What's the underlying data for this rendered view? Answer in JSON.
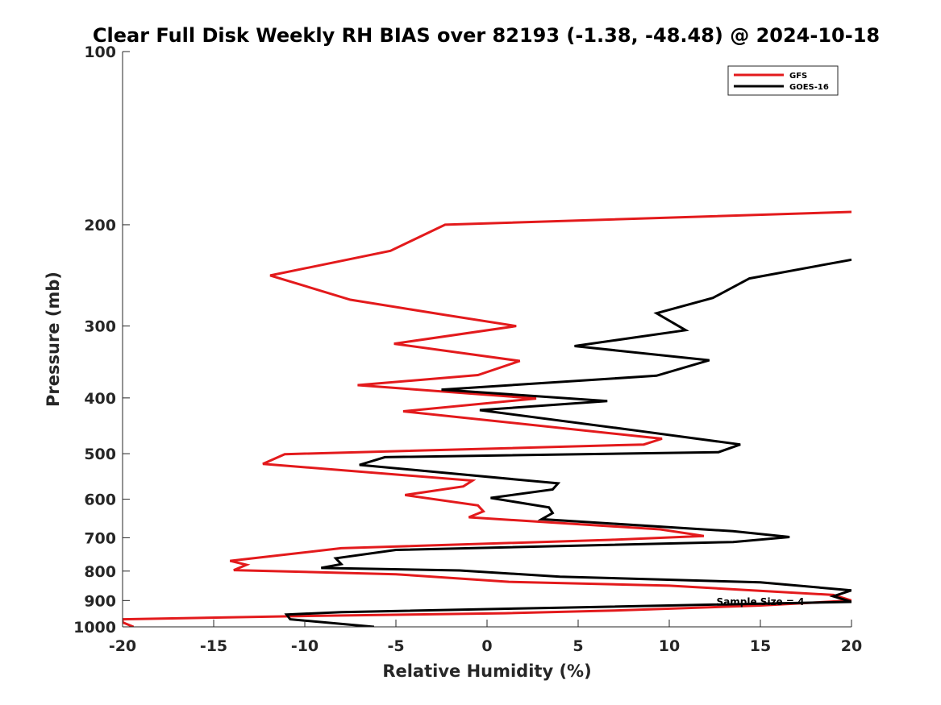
{
  "chart_data": {
    "type": "line",
    "title": "Clear Full Disk Weekly RH BIAS over 82193 (-1.38, -48.48) @ 2024-10-18",
    "xlabel": "Relative Humidity (%)",
    "ylabel": "Pressure (mb)",
    "xlim": [
      -20,
      20
    ],
    "ylim": [
      100,
      1000
    ],
    "y_scale": "log",
    "y_reversed": true,
    "x_ticks": [
      -20,
      -15,
      -10,
      -5,
      0,
      5,
      10,
      15,
      20
    ],
    "x_tick_labels": [
      "-20",
      "-15",
      "-10",
      "-5",
      "0",
      "5",
      "10",
      "15",
      "20"
    ],
    "y_ticks": [
      100,
      200,
      300,
      400,
      500,
      600,
      700,
      800,
      900,
      1000
    ],
    "y_tick_labels": [
      "100",
      "200",
      "300",
      "400",
      "500",
      "600",
      "700",
      "800",
      "900",
      "1000"
    ],
    "grid": false,
    "legend_position": "top-right",
    "annotation": "Sample Size = 4",
    "series": [
      {
        "name": "GFS",
        "color": "#e31a1c",
        "points": [
          [
            20,
            190
          ],
          [
            -2.3,
            200
          ],
          [
            -5.3,
            222
          ],
          [
            -11.9,
            245
          ],
          [
            -7.5,
            270
          ],
          [
            -2.3,
            287
          ],
          [
            1.6,
            300
          ],
          [
            -5.1,
            322
          ],
          [
            1.8,
            345
          ],
          [
            -0.5,
            365
          ],
          [
            -7.1,
            380
          ],
          [
            2.7,
            401
          ],
          [
            -4.6,
            422
          ],
          [
            9.6,
            471
          ],
          [
            8.6,
            482
          ],
          [
            -11.1,
            501
          ],
          [
            -12.3,
            521
          ],
          [
            -0.8,
            557
          ],
          [
            -1.3,
            570
          ],
          [
            -4.5,
            590
          ],
          [
            -0.5,
            615
          ],
          [
            -0.2,
            630
          ],
          [
            -1.0,
            645
          ],
          [
            9.5,
            677
          ],
          [
            11.9,
            695
          ],
          [
            6.8,
            706
          ],
          [
            -8.0,
            730
          ],
          [
            -14.1,
            768
          ],
          [
            -13.2,
            780
          ],
          [
            -13.9,
            797
          ],
          [
            -5.0,
            810
          ],
          [
            1.2,
            835
          ],
          [
            10.0,
            848
          ],
          [
            19.0,
            880
          ],
          [
            20,
            900
          ],
          [
            15.0,
            918
          ],
          [
            7.0,
            937
          ],
          [
            1.0,
            947
          ],
          [
            -10.5,
            958
          ],
          [
            -20,
            970
          ],
          [
            -20,
            982
          ],
          [
            -19.4,
            1000
          ]
        ]
      },
      {
        "name": "GOES-16",
        "color": "#000000",
        "points": [
          [
            20,
            230
          ],
          [
            14.4,
            248
          ],
          [
            12.4,
            268
          ],
          [
            9.3,
            285
          ],
          [
            10.9,
            305
          ],
          [
            4.8,
            325
          ],
          [
            12.2,
            344
          ],
          [
            9.3,
            366
          ],
          [
            -2.5,
            387
          ],
          [
            6.6,
            405
          ],
          [
            -0.4,
            420
          ],
          [
            8.0,
            455
          ],
          [
            13.9,
            482
          ],
          [
            12.7,
            497
          ],
          [
            -5.6,
            507
          ],
          [
            -7.0,
            523
          ],
          [
            3.9,
            563
          ],
          [
            3.6,
            577
          ],
          [
            0.2,
            597
          ],
          [
            3.4,
            620
          ],
          [
            3.6,
            634
          ],
          [
            3.0,
            650
          ],
          [
            13.5,
            682
          ],
          [
            16.6,
            698
          ],
          [
            13.5,
            712
          ],
          [
            -5.0,
            735
          ],
          [
            -8.3,
            760
          ],
          [
            -8.0,
            778
          ],
          [
            -9.1,
            790
          ],
          [
            -1.5,
            798
          ],
          [
            4.0,
            818
          ],
          [
            15.0,
            837
          ],
          [
            20,
            864
          ],
          [
            19.0,
            885
          ],
          [
            20,
            905
          ],
          [
            4.0,
            926
          ],
          [
            -8.0,
            943
          ],
          [
            -11.0,
            952
          ],
          [
            -10.8,
            970
          ],
          [
            -6.2,
            1000
          ]
        ]
      }
    ]
  }
}
